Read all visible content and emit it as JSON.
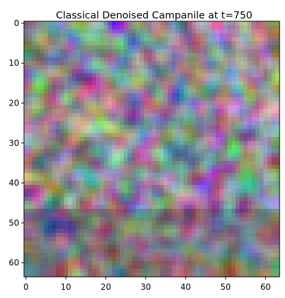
{
  "chart_data": {
    "type": "heatmap",
    "title": "Classical Denoised Campanile at t=750",
    "xlabel": "",
    "ylabel": "",
    "xlim": [
      -0.5,
      63.5
    ],
    "ylim": [
      63.5,
      -0.5
    ],
    "x_ticks": [
      0,
      10,
      20,
      30,
      40,
      50,
      60
    ],
    "y_ticks": [
      0,
      10,
      20,
      30,
      40,
      50,
      60
    ],
    "x_tick_labels": [
      "0",
      "10",
      "20",
      "30",
      "40",
      "50",
      "60"
    ],
    "y_tick_labels": [
      "0",
      "10",
      "20",
      "30",
      "40",
      "50",
      "60"
    ],
    "image_size": [
      64,
      64
    ],
    "grid": false,
    "colorbar": false,
    "content": "blurry multicolor RGB noise image, 64x64 pixels"
  }
}
